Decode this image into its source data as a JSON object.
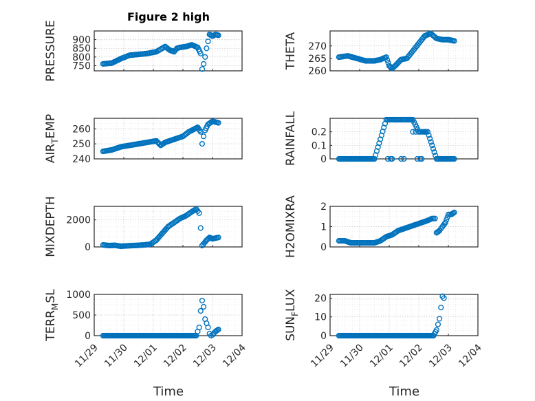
{
  "figure": {
    "title": "Figure 2 high",
    "x_axis_label": "Time",
    "x_tick_labels": [
      "11/29",
      "11/30",
      "12/01",
      "12/02",
      "12/03",
      "12/04"
    ],
    "marker_color": "#0072BD"
  },
  "chart_data": [
    {
      "type": "scatter",
      "title": "Figure 2 high",
      "ylabel": "PRESSURE",
      "ylim": [
        720,
        950
      ],
      "yticks": [
        750,
        800,
        850,
        900
      ],
      "x": [
        0.3,
        0.6,
        0.9,
        1.2,
        1.5,
        1.8,
        2.1,
        2.4,
        2.55,
        2.7,
        2.8,
        2.9,
        3.1,
        3.3,
        3.5,
        3.6,
        3.65,
        3.7,
        3.75,
        3.8,
        3.85,
        3.9,
        4.0,
        4.1,
        4.2
      ],
      "y": [
        760,
        765,
        790,
        810,
        815,
        820,
        830,
        860,
        840,
        830,
        850,
        855,
        860,
        870,
        855,
        820,
        730,
        760,
        800,
        850,
        890,
        930,
        920,
        930,
        925
      ]
    },
    {
      "type": "scatter",
      "ylabel": "THETA",
      "ylim": [
        260,
        276
      ],
      "yticks": [
        260,
        265,
        270
      ],
      "x": [
        0.3,
        0.6,
        0.9,
        1.2,
        1.5,
        1.7,
        1.9,
        2.0,
        2.1,
        2.2,
        2.4,
        2.6,
        2.8,
        3.0,
        3.2,
        3.4,
        3.6,
        3.8,
        4.0,
        4.2
      ],
      "y": [
        265.5,
        266,
        265,
        264,
        264,
        264.5,
        265.5,
        262,
        261,
        262,
        264.5,
        265,
        268,
        271,
        274,
        275,
        273,
        272.5,
        272.5,
        272
      ]
    },
    {
      "type": "scatter",
      "ylabel": "AIR_TEMP",
      "ylabel_main": "AIR",
      "ylabel_sub": "T",
      "ylabel_tail": "EMP",
      "ylim": [
        240,
        267
      ],
      "yticks": [
        240,
        250,
        260
      ],
      "x": [
        0.3,
        0.6,
        0.9,
        1.2,
        1.5,
        1.8,
        2.1,
        2.25,
        2.4,
        2.7,
        3.0,
        3.2,
        3.4,
        3.5,
        3.6,
        3.65,
        3.7,
        3.75,
        3.85,
        4.0,
        4.2
      ],
      "y": [
        245,
        246,
        248,
        249,
        250,
        251,
        252,
        249,
        251,
        253,
        255,
        258,
        260,
        261,
        258,
        250,
        255,
        259,
        263,
        265,
        264
      ]
    },
    {
      "type": "scatter",
      "ylabel": "RAINFALL",
      "ylim": [
        0,
        0.3
      ],
      "yticks": [
        0,
        0.1,
        0.2
      ],
      "x": [
        0.3,
        0.7,
        1.1,
        1.5,
        1.9,
        2.1,
        2.3,
        2.45,
        2.6,
        2.8,
        3.0,
        3.3,
        3.6,
        3.9,
        4.2
      ],
      "y": [
        0,
        0,
        0,
        0,
        0.29,
        0.29,
        0.29,
        0.29,
        0.29,
        0.29,
        0.2,
        0.2,
        0,
        0,
        0
      ],
      "extra_points": [
        [
          1.95,
          0
        ],
        [
          2.05,
          0
        ],
        [
          2.1,
          0
        ],
        [
          2.4,
          0
        ],
        [
          2.5,
          0
        ],
        [
          2.7,
          0.29
        ],
        [
          2.8,
          0.2
        ],
        [
          2.9,
          0.2
        ],
        [
          2.95,
          0
        ],
        [
          3.05,
          0
        ],
        [
          3.1,
          0
        ],
        [
          3.2,
          0.2
        ]
      ]
    },
    {
      "type": "scatter",
      "ylabel": "MIXDEPTH",
      "ylim": [
        0,
        3000
      ],
      "yticks": [
        0,
        2000
      ],
      "x": [
        0.3,
        0.5,
        0.7,
        0.9,
        1.1,
        1.3,
        1.5,
        1.7,
        1.9,
        2.1,
        2.3,
        2.5,
        2.7,
        2.9,
        3.1,
        3.3,
        3.45,
        3.55,
        3.6,
        3.65,
        3.8,
        3.9,
        4.0,
        4.2
      ],
      "y": [
        150,
        100,
        120,
        50,
        80,
        100,
        120,
        150,
        200,
        500,
        1000,
        1500,
        1800,
        2100,
        2300,
        2600,
        2800,
        2500,
        1400,
        100,
        500,
        700,
        600,
        700
      ]
    },
    {
      "type": "scatter",
      "ylabel": "H2OMIXRA",
      "ylim": [
        0,
        2
      ],
      "yticks": [
        0,
        1,
        2
      ],
      "x": [
        0.3,
        0.5,
        0.7,
        0.9,
        1.1,
        1.3,
        1.5,
        1.7,
        1.9,
        2.1,
        2.3,
        2.5,
        2.7,
        2.9,
        3.1,
        3.3,
        3.45,
        3.55,
        3.6,
        3.7,
        3.8,
        3.9,
        4.0,
        4.1,
        4.2
      ],
      "y": [
        0.3,
        0.3,
        0.2,
        0.2,
        0.2,
        0.2,
        0.2,
        0.3,
        0.5,
        0.6,
        0.8,
        0.9,
        1.0,
        1.1,
        1.2,
        1.3,
        1.4,
        1.4,
        0.7,
        0.8,
        1.0,
        1.2,
        1.6,
        1.6,
        1.7
      ]
    },
    {
      "type": "scatter",
      "ylabel": "TERR_MSL",
      "ylabel_main": "TERR",
      "ylabel_sub": "M",
      "ylabel_tail": "SL",
      "ylim": [
        0,
        1000
      ],
      "yticks": [
        0,
        500,
        1000
      ],
      "x": [
        0.3,
        0.7,
        1.1,
        1.5,
        1.9,
        2.3,
        2.7,
        3.1,
        3.45,
        3.55,
        3.6,
        3.65,
        3.7,
        3.75,
        3.8,
        3.85,
        3.9,
        3.95,
        4.0,
        4.1,
        4.2
      ],
      "y": [
        0,
        0,
        0,
        0,
        0,
        0,
        0,
        0,
        0,
        200,
        600,
        850,
        700,
        400,
        300,
        200,
        50,
        0,
        20,
        100,
        150
      ]
    },
    {
      "type": "scatter",
      "ylabel": "SUN_FLUX",
      "ylabel_main": "SUN",
      "ylabel_sub": "F",
      "ylabel_tail": "LUX",
      "ylim": [
        0,
        22
      ],
      "yticks": [
        0,
        10,
        20
      ],
      "x": [
        0.3,
        0.7,
        1.1,
        1.5,
        1.9,
        2.3,
        2.7,
        3.1,
        3.5,
        3.6,
        3.65,
        3.7,
        3.75,
        3.8,
        3.85
      ],
      "y": [
        0,
        0,
        0,
        0,
        0,
        0,
        0,
        0,
        0,
        3,
        6,
        9,
        15,
        21,
        20
      ]
    }
  ]
}
